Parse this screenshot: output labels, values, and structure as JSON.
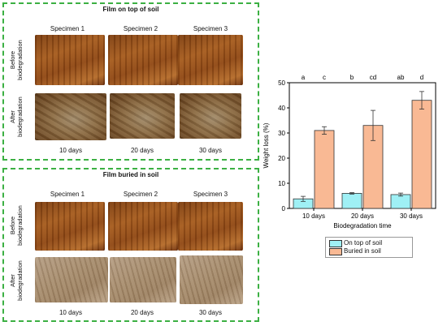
{
  "top_panel": {
    "title": "Film on top of soil",
    "specimens": [
      "Specimen 1",
      "Specimen 2",
      "Specimen 3"
    ],
    "row_before": [
      "Before",
      "biodegradation"
    ],
    "row_after": [
      "After",
      "biodegradation"
    ],
    "days": [
      "10 days",
      "20 days",
      "30 days"
    ]
  },
  "bottom_panel": {
    "title": "Film buried in soil",
    "specimens": [
      "Specimen 1",
      "Specimen 2",
      "Specimen 3"
    ],
    "row_before": [
      "Before",
      "biodegradation"
    ],
    "row_after": [
      "After",
      "biodegradation"
    ],
    "days": [
      "10 days",
      "20 days",
      "30 days"
    ]
  },
  "chart_data": {
    "type": "bar",
    "xlabel": "Biodegradation time",
    "ylabel": "Weight loss (%)",
    "ylim": [
      0,
      50
    ],
    "yticks": [
      0,
      10,
      20,
      30,
      40,
      50
    ],
    "categories": [
      "10 days",
      "20 days",
      "30 days"
    ],
    "series": [
      {
        "name": "On top of soil",
        "values": [
          3.8,
          6.0,
          5.5
        ],
        "errors": [
          1.0,
          0.3,
          0.6
        ],
        "color": "#9ff0f5",
        "letters": [
          "a",
          "b",
          "ab"
        ]
      },
      {
        "name": "Buried in soil",
        "values": [
          31.0,
          33.0,
          43.0
        ],
        "errors": [
          1.5,
          6.0,
          3.5
        ],
        "color": "#f9b994",
        "letters": [
          "c",
          "cd",
          "d"
        ]
      }
    ],
    "grid": false,
    "legend_position": "bottom"
  }
}
